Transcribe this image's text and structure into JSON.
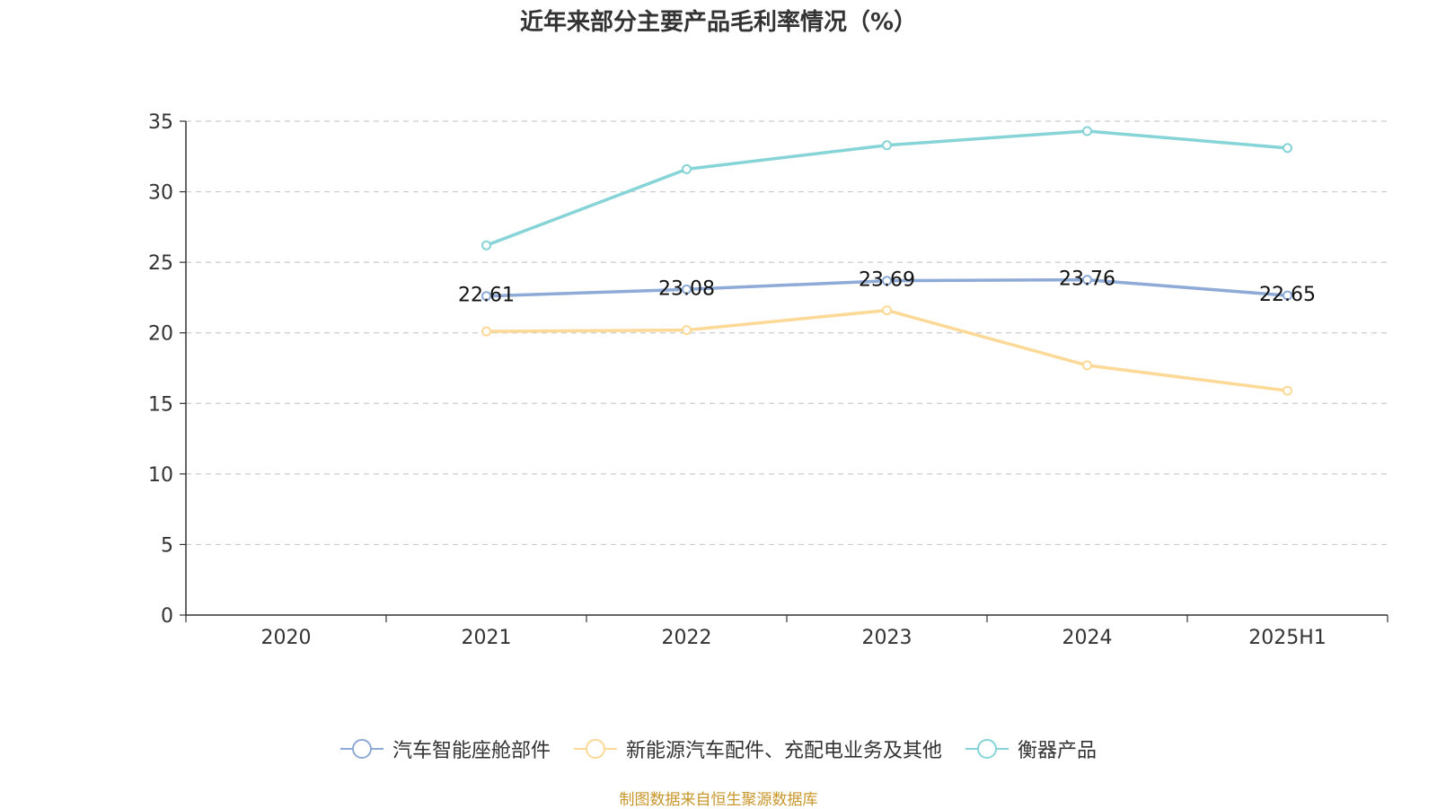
{
  "title": "近年来部分主要产品毛利率情况（%）",
  "source_note": "制图数据来自恒生聚源数据库",
  "chart_data": {
    "type": "line",
    "categories": [
      "2020",
      "2021",
      "2022",
      "2023",
      "2024",
      "2025H1"
    ],
    "ylim": [
      0,
      35
    ],
    "yticks": [
      0,
      5,
      10,
      15,
      20,
      25,
      30,
      35
    ],
    "grid": true,
    "legend_position": "bottom",
    "series": [
      {
        "name": "汽车智能座舱部件",
        "color": "#8eaad6",
        "values": [
          null,
          22.61,
          23.08,
          23.69,
          23.76,
          22.65
        ],
        "show_labels": true
      },
      {
        "name": "新能源汽车配件、充配电业务及其他",
        "color": "#fcd996",
        "values": [
          null,
          20.1,
          20.2,
          21.6,
          17.7,
          15.9
        ],
        "show_labels": false
      },
      {
        "name": "衡器产品",
        "color": "#86d4d7",
        "values": [
          null,
          26.2,
          31.6,
          33.3,
          34.3,
          33.1
        ],
        "show_labels": false
      }
    ]
  }
}
